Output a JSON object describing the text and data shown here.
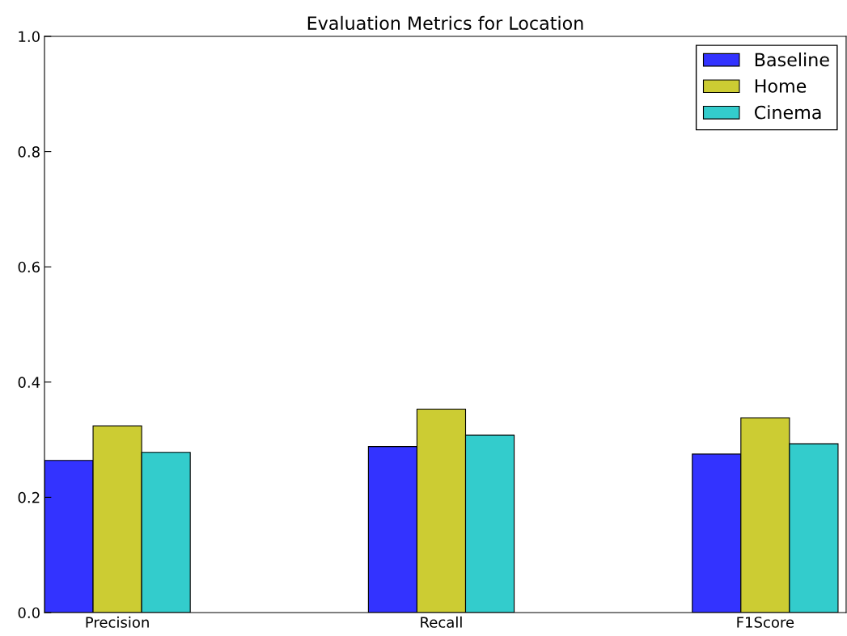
{
  "chart_data": {
    "type": "bar",
    "title": "Evaluation Metrics for Location",
    "categories": [
      "Precision",
      "Recall",
      "F1Score"
    ],
    "series": [
      {
        "name": "Baseline",
        "color": "#3333ff",
        "values": [
          0.264,
          0.288,
          0.275
        ]
      },
      {
        "name": "Home",
        "color": "#cccc33",
        "values": [
          0.324,
          0.353,
          0.338
        ]
      },
      {
        "name": "Cinema",
        "color": "#33cccc",
        "values": [
          0.278,
          0.308,
          0.293
        ]
      }
    ],
    "ylim": [
      0,
      1.0
    ],
    "yticks": [
      {
        "value": 0,
        "label": "0.0"
      },
      0.2,
      0.4,
      0.6,
      0.8,
      {
        "value": 1.0,
        "label": "1.0"
      }
    ],
    "legend": "top right",
    "grid": false
  }
}
